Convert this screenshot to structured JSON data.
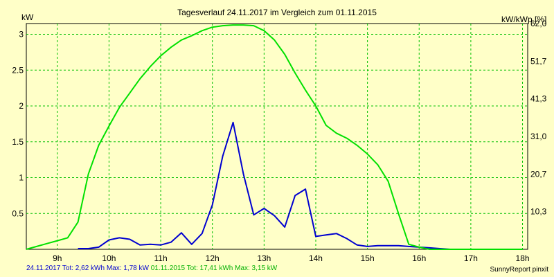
{
  "chart_data": {
    "type": "line",
    "title": "Tagesverlauf 24.11.2017 im Vergleich zum 01.11.2015",
    "ylabel_left": "kW",
    "ylabel_right": "kW/kWp [%]",
    "ylim": [
      0,
      3.15
    ],
    "xlim": [
      8.4,
      18.1
    ],
    "x_ticks": [
      9,
      10,
      11,
      12,
      13,
      14,
      15,
      16,
      17,
      18
    ],
    "x_tick_labels": [
      "9h",
      "10h",
      "11h",
      "12h",
      "13h",
      "14h",
      "15h",
      "16h",
      "17h",
      "18h"
    ],
    "y_ticks_left": [
      0.5,
      1,
      1.5,
      2,
      2.5,
      3
    ],
    "y_tick_labels_left": [
      "0.5",
      "1",
      "1.5",
      "2",
      "2.5",
      "3"
    ],
    "y_ticks_right_at": [
      0.525,
      1.05,
      1.575,
      2.1,
      2.625,
      3.15
    ],
    "y_tick_labels_right": [
      "10,3",
      "20,7",
      "31,0",
      "41,3",
      "51,7",
      "62,0"
    ],
    "grid": true,
    "series": [
      {
        "name": "24.11.2017",
        "color": "#0000d0",
        "x": [
          9.4,
          9.6,
          9.8,
          10.0,
          10.2,
          10.4,
          10.6,
          10.8,
          11.0,
          11.2,
          11.4,
          11.6,
          11.8,
          12.0,
          12.2,
          12.4,
          12.6,
          12.8,
          13.0,
          13.2,
          13.4,
          13.6,
          13.8,
          14.0,
          14.2,
          14.4,
          14.6,
          14.8,
          15.0,
          15.2,
          15.4,
          15.6,
          15.8,
          16.0,
          16.2,
          16.4,
          16.6,
          16.8,
          17.0,
          17.2,
          17.4,
          17.6,
          17.8,
          18.0
        ],
        "values": [
          0.01,
          0.01,
          0.03,
          0.13,
          0.16,
          0.14,
          0.06,
          0.07,
          0.06,
          0.1,
          0.23,
          0.07,
          0.22,
          0.62,
          1.3,
          1.77,
          1.05,
          0.48,
          0.57,
          0.47,
          0.31,
          0.75,
          0.84,
          0.18,
          0.2,
          0.22,
          0.15,
          0.06,
          0.04,
          0.05,
          0.05,
          0.05,
          0.04,
          0.03,
          0.02,
          0.01,
          0.0,
          0.0,
          0.0,
          0.0,
          0.0,
          0.0,
          0.0,
          0.0
        ]
      },
      {
        "name": "01.11.2015",
        "color": "#00e000",
        "x": [
          8.4,
          8.6,
          8.8,
          9.0,
          9.2,
          9.4,
          9.6,
          9.8,
          10.0,
          10.2,
          10.4,
          10.6,
          10.8,
          11.0,
          11.2,
          11.4,
          11.6,
          11.8,
          12.0,
          12.2,
          12.4,
          12.6,
          12.8,
          13.0,
          13.2,
          13.4,
          13.6,
          13.8,
          14.0,
          14.2,
          14.4,
          14.6,
          14.8,
          15.0,
          15.2,
          15.4,
          15.6,
          15.8,
          16.0,
          16.2,
          16.4,
          16.6,
          16.8,
          17.0,
          17.2,
          17.4,
          17.6,
          17.8,
          18.0
        ],
        "values": [
          0.0,
          0.04,
          0.08,
          0.12,
          0.16,
          0.38,
          1.05,
          1.45,
          1.72,
          1.98,
          2.18,
          2.38,
          2.55,
          2.7,
          2.82,
          2.92,
          2.98,
          3.05,
          3.1,
          3.12,
          3.13,
          3.13,
          3.12,
          3.05,
          2.92,
          2.72,
          2.46,
          2.22,
          2.0,
          1.73,
          1.62,
          1.55,
          1.45,
          1.33,
          1.18,
          0.95,
          0.5,
          0.07,
          0.03,
          0.0,
          0.0,
          0.0,
          0.0,
          0.0,
          0.0,
          0.0,
          0.0,
          0.0,
          0.0
        ]
      }
    ]
  },
  "footer": {
    "blue": "24.11.2017 Tot: 2,62 kWh Max: 1,78 kW",
    "green": " 01.11.2015 Tot: 17,41 kWh Max: 3,15 kW"
  },
  "credit": "SunnyReport pinxit"
}
